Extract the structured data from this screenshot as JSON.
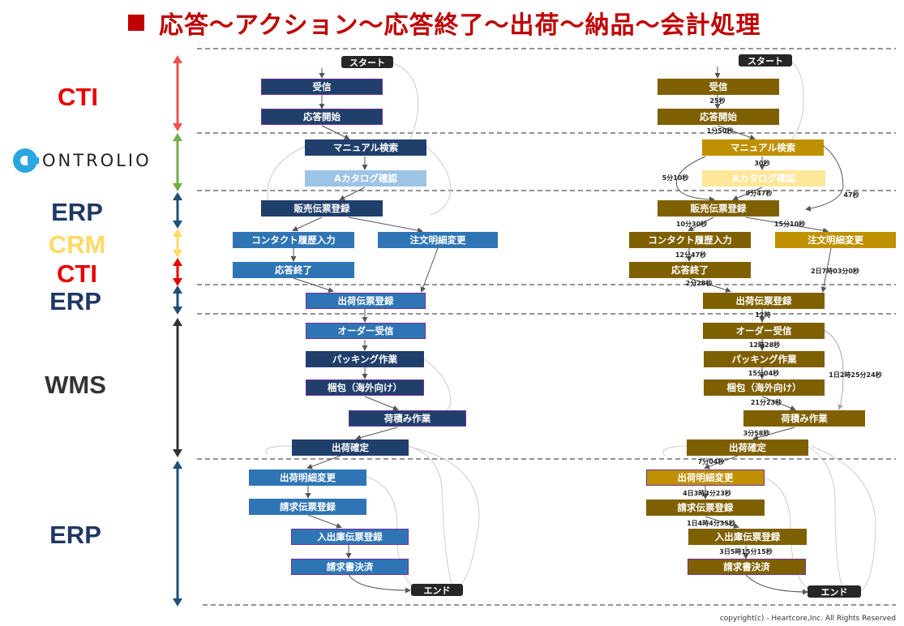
{
  "title": "応答～アクション～応答終了～出荷～納品～会計処理",
  "systems": [
    {
      "name": "CTI",
      "color": "#e80000"
    },
    {
      "name": "ERP",
      "color": "#1f3864"
    },
    {
      "name": "CRM",
      "color": "#ffd966"
    },
    {
      "name": "CTI",
      "color": "#e80000"
    },
    {
      "name": "ERP",
      "color": "#1f3864"
    },
    {
      "name": "WMS",
      "color": "#333333"
    },
    {
      "name": "ERP",
      "color": "#1f3864"
    }
  ],
  "logo": {
    "word": "ONTROLIO",
    "accent": "#2aa7e0"
  },
  "steps": {
    "start": "スタート",
    "receive": "受信",
    "answer_start": "応答開始",
    "manual": "マニュアル検索",
    "catalog": "Aカタログ確認",
    "sales": "販売伝票登録",
    "contact": "コンタクト履歴入力",
    "order_change": "注文明細変更",
    "answer_end": "応答終了",
    "ship_reg": "出荷伝票登録",
    "order_recv": "オーダー受信",
    "packing": "パッキング作業",
    "pack_abroad": "梱包（海外向け）",
    "loading": "荷積み作業",
    "ship_confirm": "出荷確定",
    "ship_detail": "出荷明細変更",
    "invoice_reg": "請求伝票登録",
    "io_reg": "入出庫伝票登録",
    "invoice_settle": "請求書決済",
    "end": "エンド"
  },
  "durations": {
    "receive_answer": "25秒",
    "answer_manual": "1分50秒",
    "manual_catalog": "30秒",
    "catalog_left": "5分10秒",
    "catalog_sales": "9分47秒",
    "manual_sales": "47秒",
    "sales_contact": "10分30秒",
    "sales_order": "15分10秒",
    "contact_end": "12分47秒",
    "end_ship": "2分28秒",
    "order_ship": "2日7時03分0秒",
    "ship_order": "12時",
    "order_packing": "12時28秒",
    "packing_pack": "15分04秒",
    "order_loading": "1日2時25分24秒",
    "pack_loading": "21分23秒",
    "loading_confirm": "3分58秒",
    "confirm_detail": "7分04秒",
    "detail_invoice": "4日3時3分23秒",
    "invoice_io": "1日4時4分35秒",
    "io_settle": "3日5時15分15秒"
  },
  "copyright": "copyright(c)  - Heartcore,Inc. All Rights Reserved"
}
